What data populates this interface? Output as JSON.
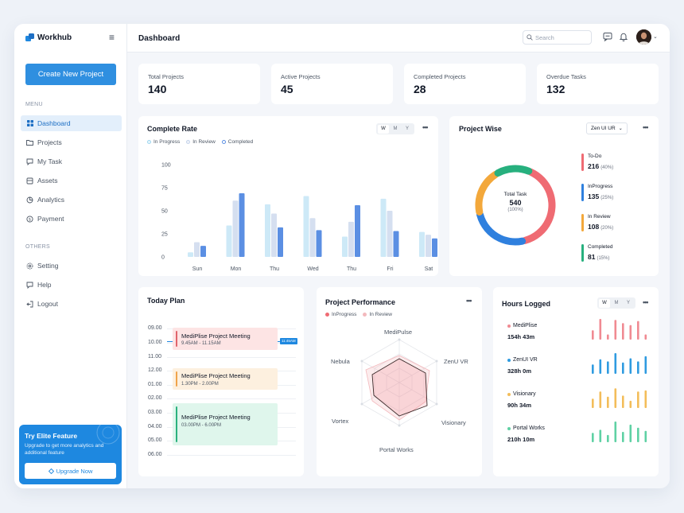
{
  "app": {
    "name": "Workhub"
  },
  "sidebar": {
    "create_button": "Create New Project",
    "menu_title": "MENU",
    "menu_items": [
      {
        "label": "Dashboard",
        "icon": "grid-icon",
        "active": true
      },
      {
        "label": "Projects",
        "icon": "folder-icon"
      },
      {
        "label": "My Task",
        "icon": "message-icon"
      },
      {
        "label": "Assets",
        "icon": "box-icon"
      },
      {
        "label": "Analytics",
        "icon": "pie-icon"
      },
      {
        "label": "Payment",
        "icon": "dollar-icon"
      }
    ],
    "others_title": "OTHERS",
    "other_items": [
      {
        "label": "Setting",
        "icon": "gear-icon"
      },
      {
        "label": "Help",
        "icon": "help-icon"
      },
      {
        "label": "Logout",
        "icon": "logout-icon"
      }
    ],
    "promo": {
      "title": "Try Elite Feature",
      "text": "Upgrade to get more analytics and additional feature",
      "button": "Upgrade Now"
    }
  },
  "header": {
    "title": "Dashboard",
    "search_placeholder": "Search"
  },
  "stats": [
    {
      "label": "Total Projects",
      "value": "140"
    },
    {
      "label": "Active Projects",
      "value": "45"
    },
    {
      "label": "Completed Projects",
      "value": "28"
    },
    {
      "label": "Overdue Tasks",
      "value": "132"
    }
  ],
  "complete_rate": {
    "title": "Complete Rate",
    "toggle": [
      "W",
      "M",
      "Y"
    ],
    "legend": [
      "In Progress",
      "In Review",
      "Completed"
    ]
  },
  "chart_data": {
    "type": "bar",
    "categories": [
      "Sun",
      "Mon",
      "Thu",
      "Wed",
      "Thu",
      "Fri",
      "Sat"
    ],
    "yticks": [
      "100",
      "75",
      "50",
      "25",
      "0"
    ],
    "ylim": [
      0,
      100
    ],
    "series": [
      {
        "name": "In Progress",
        "color": "#cde9f7",
        "values": [
          5,
          34,
          57,
          66,
          22,
          63,
          27
        ]
      },
      {
        "name": "In Review",
        "color": "#d5dff0",
        "values": [
          16,
          61,
          47,
          42,
          38,
          50,
          24
        ]
      },
      {
        "name": "Completed",
        "color": "#5b8fe3",
        "values": [
          12,
          69,
          32,
          29,
          56,
          28,
          20
        ]
      }
    ]
  },
  "project_wise": {
    "title": "Project Wise",
    "dropdown": "Zen UI UR",
    "center_label": "Total Task",
    "center_value": "540",
    "center_pct": "(100%)",
    "items": [
      {
        "name": "To-Do",
        "value": "216",
        "pct": "(40%)",
        "color": "#ef6b73",
        "fraction": 0.4
      },
      {
        "name": "InProgress",
        "value": "135",
        "pct": "(25%)",
        "color": "#2f80de",
        "fraction": 0.25
      },
      {
        "name": "In Review",
        "value": "108",
        "pct": "(20%)",
        "color": "#f3a83b",
        "fraction": 0.2
      },
      {
        "name": "Completed",
        "value": "81",
        "pct": "(15%)",
        "color": "#27b07e",
        "fraction": 0.15
      }
    ]
  },
  "today_plan": {
    "title": "Today Plan",
    "times": [
      "09.00",
      "10.00",
      "11.00",
      "12.00",
      "01.00",
      "02.00",
      "03.00",
      "04.00",
      "05.00",
      "06.00"
    ],
    "now_label": "11:45AM",
    "events": [
      {
        "title": "MediPlise Project Meeting",
        "time": "9.45AM - 11.15AM"
      },
      {
        "title": "MediPlise Project Meeting",
        "time": "1.30PM - 2.00PM"
      },
      {
        "title": "MediPlise Project Meeting",
        "time": "03.00PM - 6.00PM"
      }
    ]
  },
  "project_performance": {
    "title": "Project Performance",
    "legend": [
      "InProgress",
      "In Review"
    ],
    "axes": [
      "MediPulse",
      "ZenU VR",
      "Visionary",
      "Portal Works",
      "Vortex",
      "Nebula"
    ]
  },
  "hours_logged": {
    "title": "Hours Logged",
    "toggle": [
      "W",
      "M",
      "Y"
    ],
    "items": [
      {
        "name": "MediPlise",
        "value": "154h 43m",
        "color": "#f08a92",
        "bars": [
          0.45,
          1.0,
          0.25,
          0.95,
          0.8,
          0.7,
          0.9,
          0.25
        ]
      },
      {
        "name": "ZenUI VR",
        "value": "328h 0m",
        "color": "#2f9be0",
        "bars": [
          0.45,
          0.7,
          0.6,
          1.0,
          0.55,
          0.75,
          0.6,
          0.85
        ]
      },
      {
        "name": "Visionary",
        "value": "90h 34m",
        "color": "#f3bd5a",
        "bars": [
          0.45,
          0.8,
          0.55,
          0.95,
          0.6,
          0.35,
          0.8,
          0.85
        ]
      },
      {
        "name": "Portal Works",
        "value": "210h 10m",
        "color": "#5fd1a4",
        "bars": [
          0.45,
          0.6,
          0.35,
          1.0,
          0.5,
          0.85,
          0.7,
          0.55
        ]
      }
    ]
  }
}
